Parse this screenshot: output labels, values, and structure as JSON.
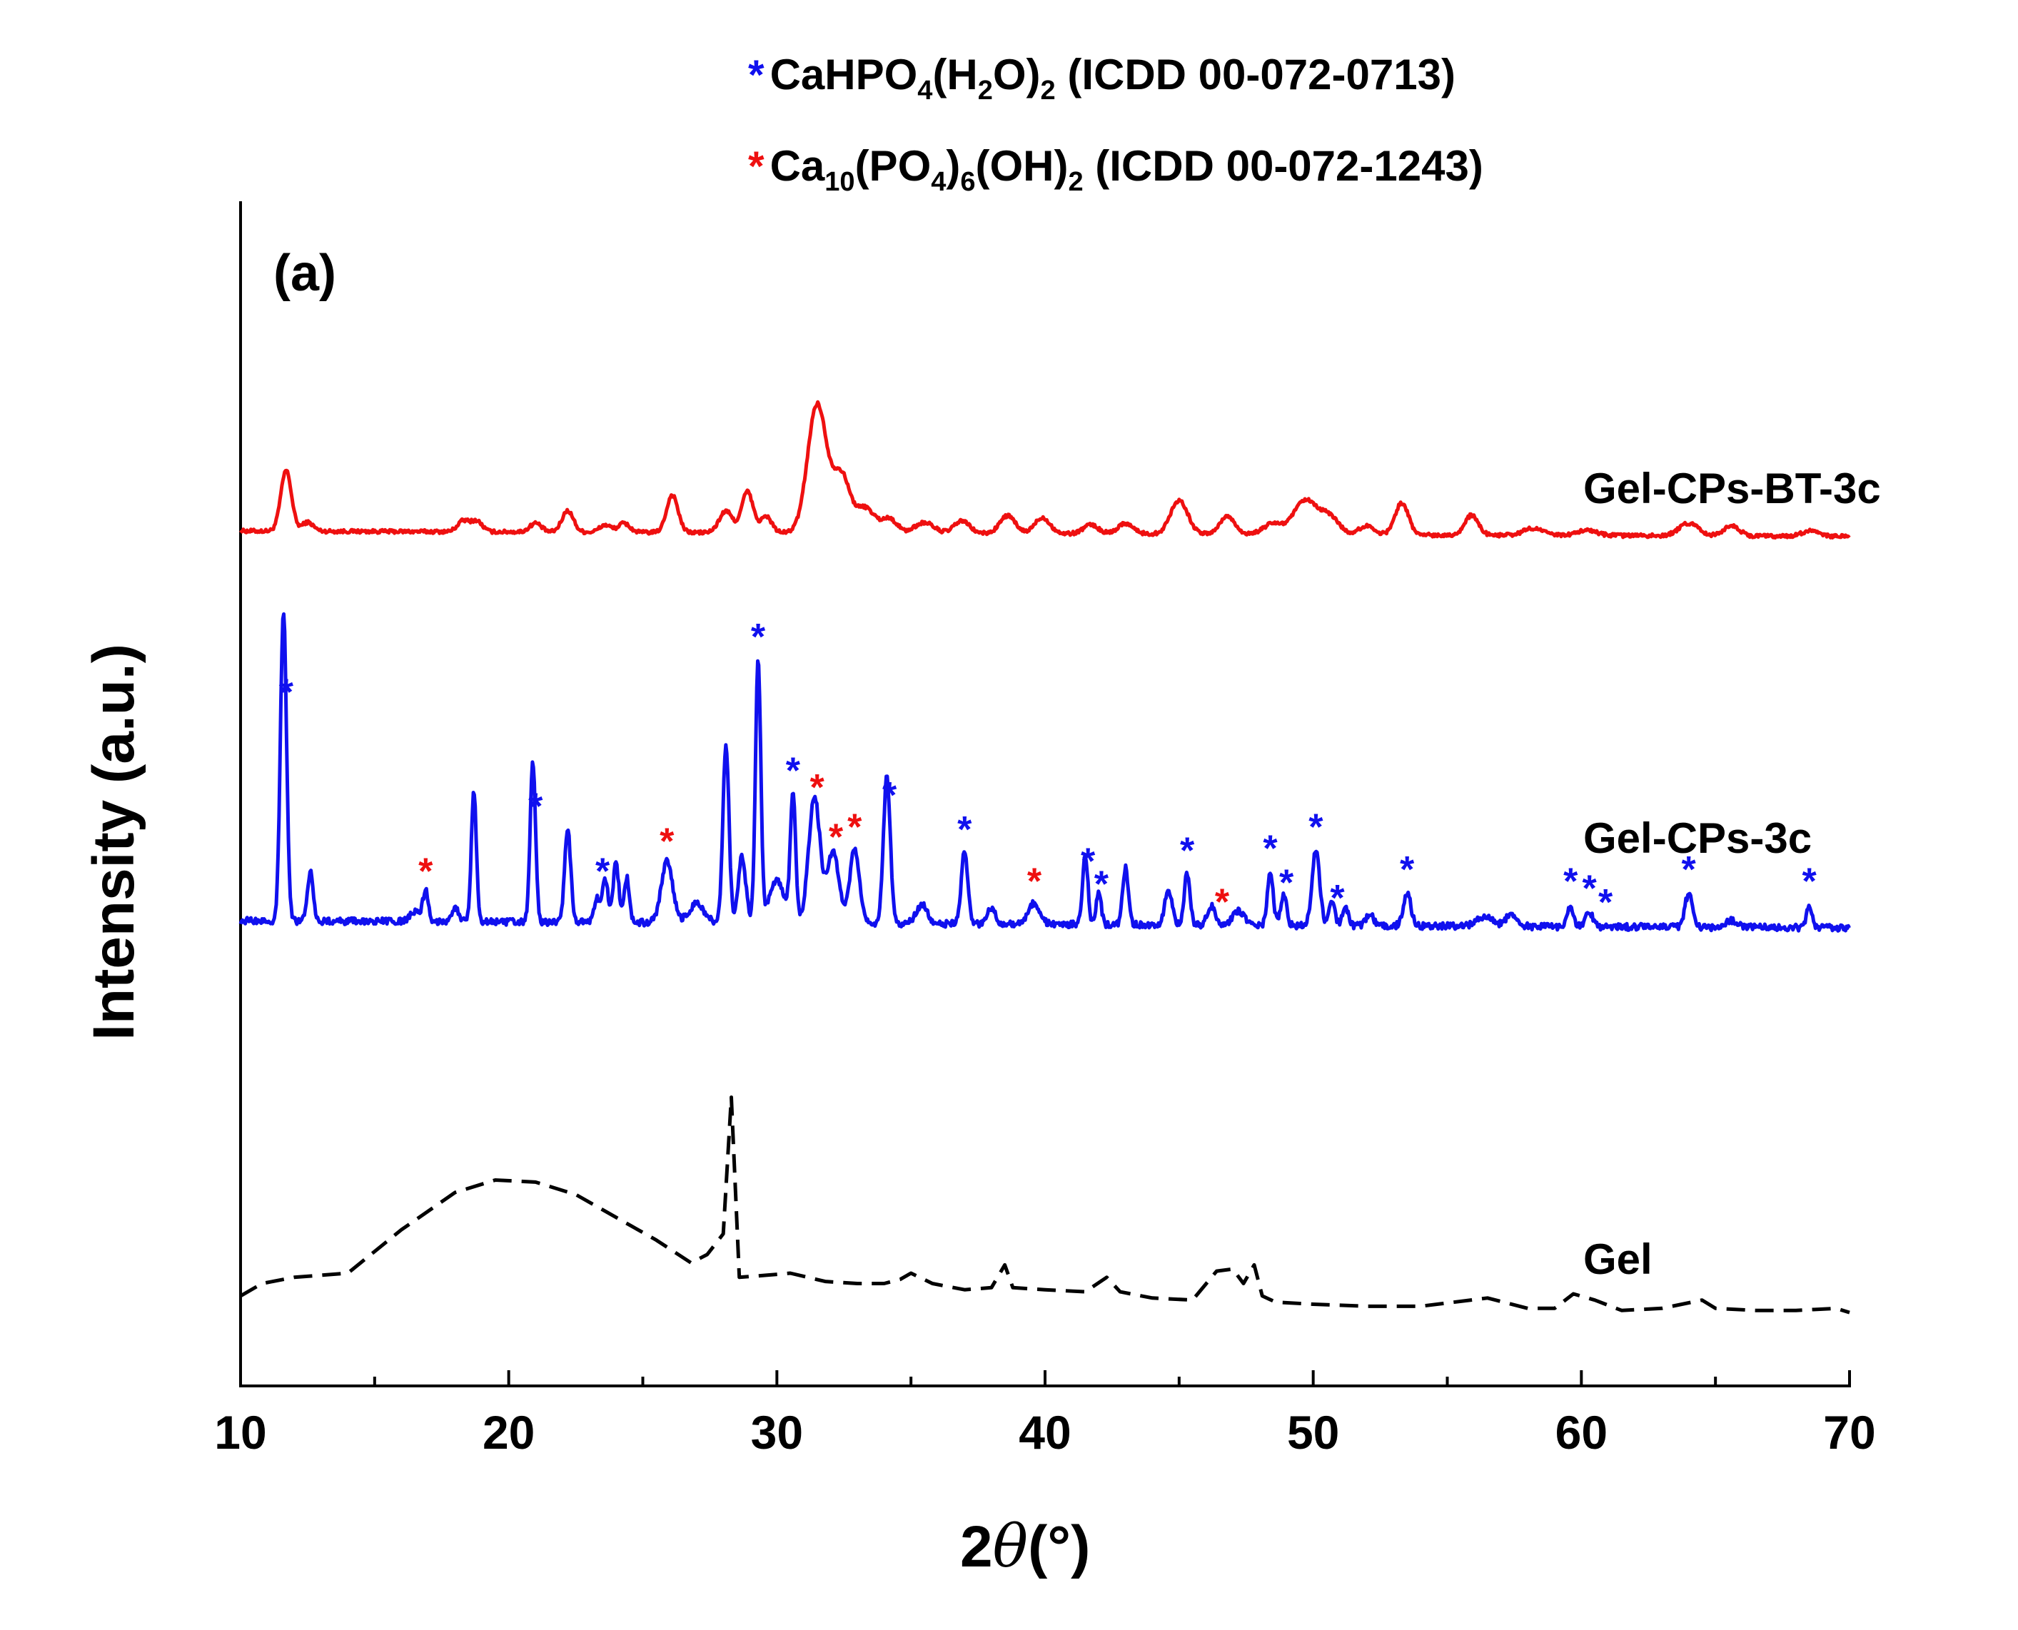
{
  "chart_data": {
    "type": "line",
    "panel_label": "(a)",
    "xlabel_prefix": "2",
    "xlabel_symbol": "θ",
    "xlabel_unit": "(°)",
    "ylabel": "Intensity (a.u.)",
    "xlim": [
      10,
      70
    ],
    "x_ticks": [
      "10",
      "20",
      "30",
      "40",
      "50",
      "60",
      "70"
    ],
    "legend": [
      {
        "marker": "*",
        "color": "#1010ee",
        "parts": [
          "CaHPO",
          "4",
          "(H",
          "2",
          "O)",
          "2",
          " (ICDD 00-072-0713)"
        ]
      },
      {
        "marker": "*",
        "color": "#ee1010",
        "parts": [
          "Ca",
          "10",
          "(PO",
          "4",
          ")",
          "6",
          "(OH)",
          "2",
          " (ICDD 00-072-1243)"
        ]
      }
    ],
    "series": [
      {
        "name": "Gel-CPs-BT-3c",
        "color": "#ee1010",
        "style": "solid",
        "baseline": 0.78,
        "noise": 0.05,
        "peaks": [
          [
            11.7,
            1.7,
            0.28
          ],
          [
            12.5,
            0.25,
            0.3
          ],
          [
            18.3,
            0.3,
            0.3
          ],
          [
            18.8,
            0.3,
            0.3
          ],
          [
            21.0,
            0.25,
            0.3
          ],
          [
            22.2,
            0.6,
            0.3
          ],
          [
            23.6,
            0.2,
            0.3
          ],
          [
            24.3,
            0.25,
            0.3
          ],
          [
            26.1,
            1.05,
            0.3
          ],
          [
            28.1,
            0.6,
            0.35
          ],
          [
            28.9,
            1.15,
            0.3
          ],
          [
            29.6,
            0.45,
            0.3
          ],
          [
            31.5,
            3.6,
            0.5
          ],
          [
            32.4,
            1.6,
            0.45
          ],
          [
            33.3,
            0.7,
            0.5
          ],
          [
            34.2,
            0.4,
            0.4
          ],
          [
            35.5,
            0.3,
            0.5
          ],
          [
            36.9,
            0.35,
            0.4
          ],
          [
            38.6,
            0.5,
            0.4
          ],
          [
            39.9,
            0.45,
            0.4
          ],
          [
            41.7,
            0.25,
            0.4
          ],
          [
            43.0,
            0.3,
            0.4
          ],
          [
            45.0,
            0.95,
            0.45
          ],
          [
            46.8,
            0.5,
            0.4
          ],
          [
            48.5,
            0.3,
            0.5
          ],
          [
            49.7,
            0.95,
            0.6
          ],
          [
            50.6,
            0.5,
            0.5
          ],
          [
            52.0,
            0.25,
            0.4
          ],
          [
            53.3,
            0.9,
            0.35
          ],
          [
            55.9,
            0.55,
            0.35
          ],
          [
            58.2,
            0.2,
            0.5
          ],
          [
            60.2,
            0.15,
            0.5
          ],
          [
            64.0,
            0.35,
            0.5
          ],
          [
            65.6,
            0.3,
            0.4
          ],
          [
            68.5,
            0.15,
            0.4
          ]
        ]
      },
      {
        "name": "Gel-CPs-3c",
        "color": "#1010ee",
        "style": "solid",
        "baseline": 0.3,
        "noise": 0.07,
        "peaks": [
          [
            11.6,
            6.6,
            0.16
          ],
          [
            12.6,
            1.05,
            0.15
          ],
          [
            16.5,
            0.2,
            0.25
          ],
          [
            16.9,
            0.65,
            0.15
          ],
          [
            18.0,
            0.3,
            0.2
          ],
          [
            18.7,
            2.8,
            0.13
          ],
          [
            20.9,
            3.4,
            0.14
          ],
          [
            22.2,
            1.95,
            0.16
          ],
          [
            23.3,
            0.5,
            0.15
          ],
          [
            23.6,
            0.9,
            0.15
          ],
          [
            24.0,
            1.25,
            0.15
          ],
          [
            24.4,
            0.95,
            0.14
          ],
          [
            25.9,
            1.3,
            0.3
          ],
          [
            27.0,
            0.4,
            0.4
          ],
          [
            28.1,
            3.8,
            0.16
          ],
          [
            28.7,
            1.4,
            0.2
          ],
          [
            29.3,
            5.6,
            0.14
          ],
          [
            30.0,
            0.9,
            0.4
          ],
          [
            30.6,
            2.7,
            0.14
          ],
          [
            31.4,
            2.7,
            0.3
          ],
          [
            32.1,
            1.55,
            0.3
          ],
          [
            32.9,
            1.6,
            0.25
          ],
          [
            34.1,
            3.1,
            0.18
          ],
          [
            35.4,
            0.4,
            0.3
          ],
          [
            37.0,
            1.55,
            0.17
          ],
          [
            38.0,
            0.35,
            0.2
          ],
          [
            39.6,
            0.45,
            0.3
          ],
          [
            41.5,
            1.45,
            0.14
          ],
          [
            42.0,
            0.7,
            0.13
          ],
          [
            43.0,
            1.2,
            0.15
          ],
          [
            44.6,
            0.7,
            0.2
          ],
          [
            45.3,
            1.1,
            0.15
          ],
          [
            46.2,
            0.4,
            0.2
          ],
          [
            47.2,
            0.3,
            0.3
          ],
          [
            48.4,
            1.15,
            0.15
          ],
          [
            48.9,
            0.65,
            0.15
          ],
          [
            50.1,
            1.6,
            0.2
          ],
          [
            50.7,
            0.5,
            0.15
          ],
          [
            51.2,
            0.4,
            0.15
          ],
          [
            52.1,
            0.25,
            0.2
          ],
          [
            53.5,
            0.7,
            0.2
          ],
          [
            56.4,
            0.2,
            0.4
          ],
          [
            57.4,
            0.25,
            0.3
          ],
          [
            59.6,
            0.45,
            0.15
          ],
          [
            60.3,
            0.3,
            0.2
          ],
          [
            64.0,
            0.7,
            0.2
          ],
          [
            65.6,
            0.15,
            0.3
          ],
          [
            68.5,
            0.45,
            0.15
          ]
        ]
      },
      {
        "name": "Gel",
        "color": "#000000",
        "style": "dashed",
        "baseline": 0.45,
        "noise": 0.0,
        "points": [
          [
            10,
            0.0
          ],
          [
            10.8,
            0.3
          ],
          [
            12.0,
            0.45
          ],
          [
            14.0,
            0.55
          ],
          [
            16.0,
            1.6
          ],
          [
            18.0,
            2.5
          ],
          [
            19.5,
            2.8
          ],
          [
            21.0,
            2.75
          ],
          [
            22.5,
            2.45
          ],
          [
            24.0,
            1.9
          ],
          [
            25.5,
            1.35
          ],
          [
            26.8,
            0.8
          ],
          [
            27.4,
            1.0
          ],
          [
            28.0,
            1.5
          ],
          [
            28.3,
            4.8
          ],
          [
            28.6,
            0.45
          ],
          [
            29.6,
            0.5
          ],
          [
            30.5,
            0.55
          ],
          [
            31.8,
            0.35
          ],
          [
            33.0,
            0.3
          ],
          [
            34.0,
            0.3
          ],
          [
            34.6,
            0.4
          ],
          [
            35.0,
            0.55
          ],
          [
            35.8,
            0.3
          ],
          [
            37.0,
            0.15
          ],
          [
            38.0,
            0.2
          ],
          [
            38.5,
            0.75
          ],
          [
            38.8,
            0.2
          ],
          [
            40.0,
            0.15
          ],
          [
            41.5,
            0.1
          ],
          [
            42.3,
            0.45
          ],
          [
            42.8,
            0.1
          ],
          [
            44.0,
            -0.05
          ],
          [
            45.5,
            -0.1
          ],
          [
            46.4,
            0.6
          ],
          [
            47.0,
            0.65
          ],
          [
            47.4,
            0.3
          ],
          [
            47.8,
            0.75
          ],
          [
            48.1,
            0.0
          ],
          [
            48.6,
            -0.15
          ],
          [
            50.0,
            -0.2
          ],
          [
            52.0,
            -0.25
          ],
          [
            54.0,
            -0.25
          ],
          [
            56.5,
            -0.05
          ],
          [
            58.0,
            -0.3
          ],
          [
            59.0,
            -0.3
          ],
          [
            59.7,
            0.05
          ],
          [
            60.5,
            -0.1
          ],
          [
            61.5,
            -0.35
          ],
          [
            63.0,
            -0.3
          ],
          [
            64.5,
            -0.1
          ],
          [
            65.0,
            -0.3
          ],
          [
            66.5,
            -0.35
          ],
          [
            68.0,
            -0.35
          ],
          [
            69.5,
            -0.3
          ],
          [
            70,
            -0.4
          ]
        ]
      }
    ],
    "markers": [
      {
        "x": 11.7,
        "phase": "CaHPO4(H2O)2",
        "color": "#1010ee"
      },
      {
        "x": 16.9,
        "phase": "Ca10(PO4)6(OH)2",
        "color": "#ee1010"
      },
      {
        "x": 21.0,
        "phase": "CaHPO4(H2O)2",
        "color": "#1010ee"
      },
      {
        "x": 23.5,
        "phase": "CaHPO4(H2O)2",
        "color": "#1010ee"
      },
      {
        "x": 25.9,
        "phase": "Ca10(PO4)6(OH)2",
        "color": "#ee1010"
      },
      {
        "x": 29.3,
        "phase": "CaHPO4(H2O)2",
        "color": "#1010ee"
      },
      {
        "x": 30.6,
        "phase": "CaHPO4(H2O)2",
        "color": "#1010ee"
      },
      {
        "x": 31.5,
        "phase": "Ca10(PO4)6(OH)2",
        "color": "#ee1010"
      },
      {
        "x": 32.2,
        "phase": "Ca10(PO4)6(OH)2",
        "color": "#ee1010"
      },
      {
        "x": 32.9,
        "phase": "Ca10(PO4)6(OH)2",
        "color": "#ee1010"
      },
      {
        "x": 34.2,
        "phase": "CaHPO4(H2O)2",
        "color": "#1010ee"
      },
      {
        "x": 37.0,
        "phase": "CaHPO4(H2O)2",
        "color": "#1010ee"
      },
      {
        "x": 39.6,
        "phase": "Ca10(PO4)6(OH)2",
        "color": "#ee1010"
      },
      {
        "x": 41.6,
        "phase": "CaHPO4(H2O)2",
        "color": "#1010ee"
      },
      {
        "x": 42.1,
        "phase": "CaHPO4(H2O)2",
        "color": "#1010ee"
      },
      {
        "x": 45.3,
        "phase": "CaHPO4(H2O)2",
        "color": "#1010ee"
      },
      {
        "x": 46.6,
        "phase": "Ca10(PO4)6(OH)2",
        "color": "#ee1010"
      },
      {
        "x": 48.4,
        "phase": "CaHPO4(H2O)2",
        "color": "#1010ee"
      },
      {
        "x": 49.0,
        "phase": "CaHPO4(H2O)2",
        "color": "#1010ee"
      },
      {
        "x": 50.1,
        "phase": "CaHPO4(H2O)2",
        "color": "#1010ee"
      },
      {
        "x": 50.9,
        "phase": "CaHPO4(H2O)2",
        "color": "#1010ee"
      },
      {
        "x": 53.5,
        "phase": "CaHPO4(H2O)2",
        "color": "#1010ee"
      },
      {
        "x": 59.6,
        "phase": "CaHPO4(H2O)2",
        "color": "#1010ee"
      },
      {
        "x": 60.3,
        "phase": "CaHPO4(H2O)2",
        "color": "#1010ee"
      },
      {
        "x": 60.9,
        "phase": "CaHPO4(H2O)2",
        "color": "#1010ee"
      },
      {
        "x": 64.0,
        "phase": "CaHPO4(H2O)2",
        "color": "#1010ee"
      },
      {
        "x": 68.5,
        "phase": "CaHPO4(H2O)2",
        "color": "#1010ee"
      }
    ]
  }
}
